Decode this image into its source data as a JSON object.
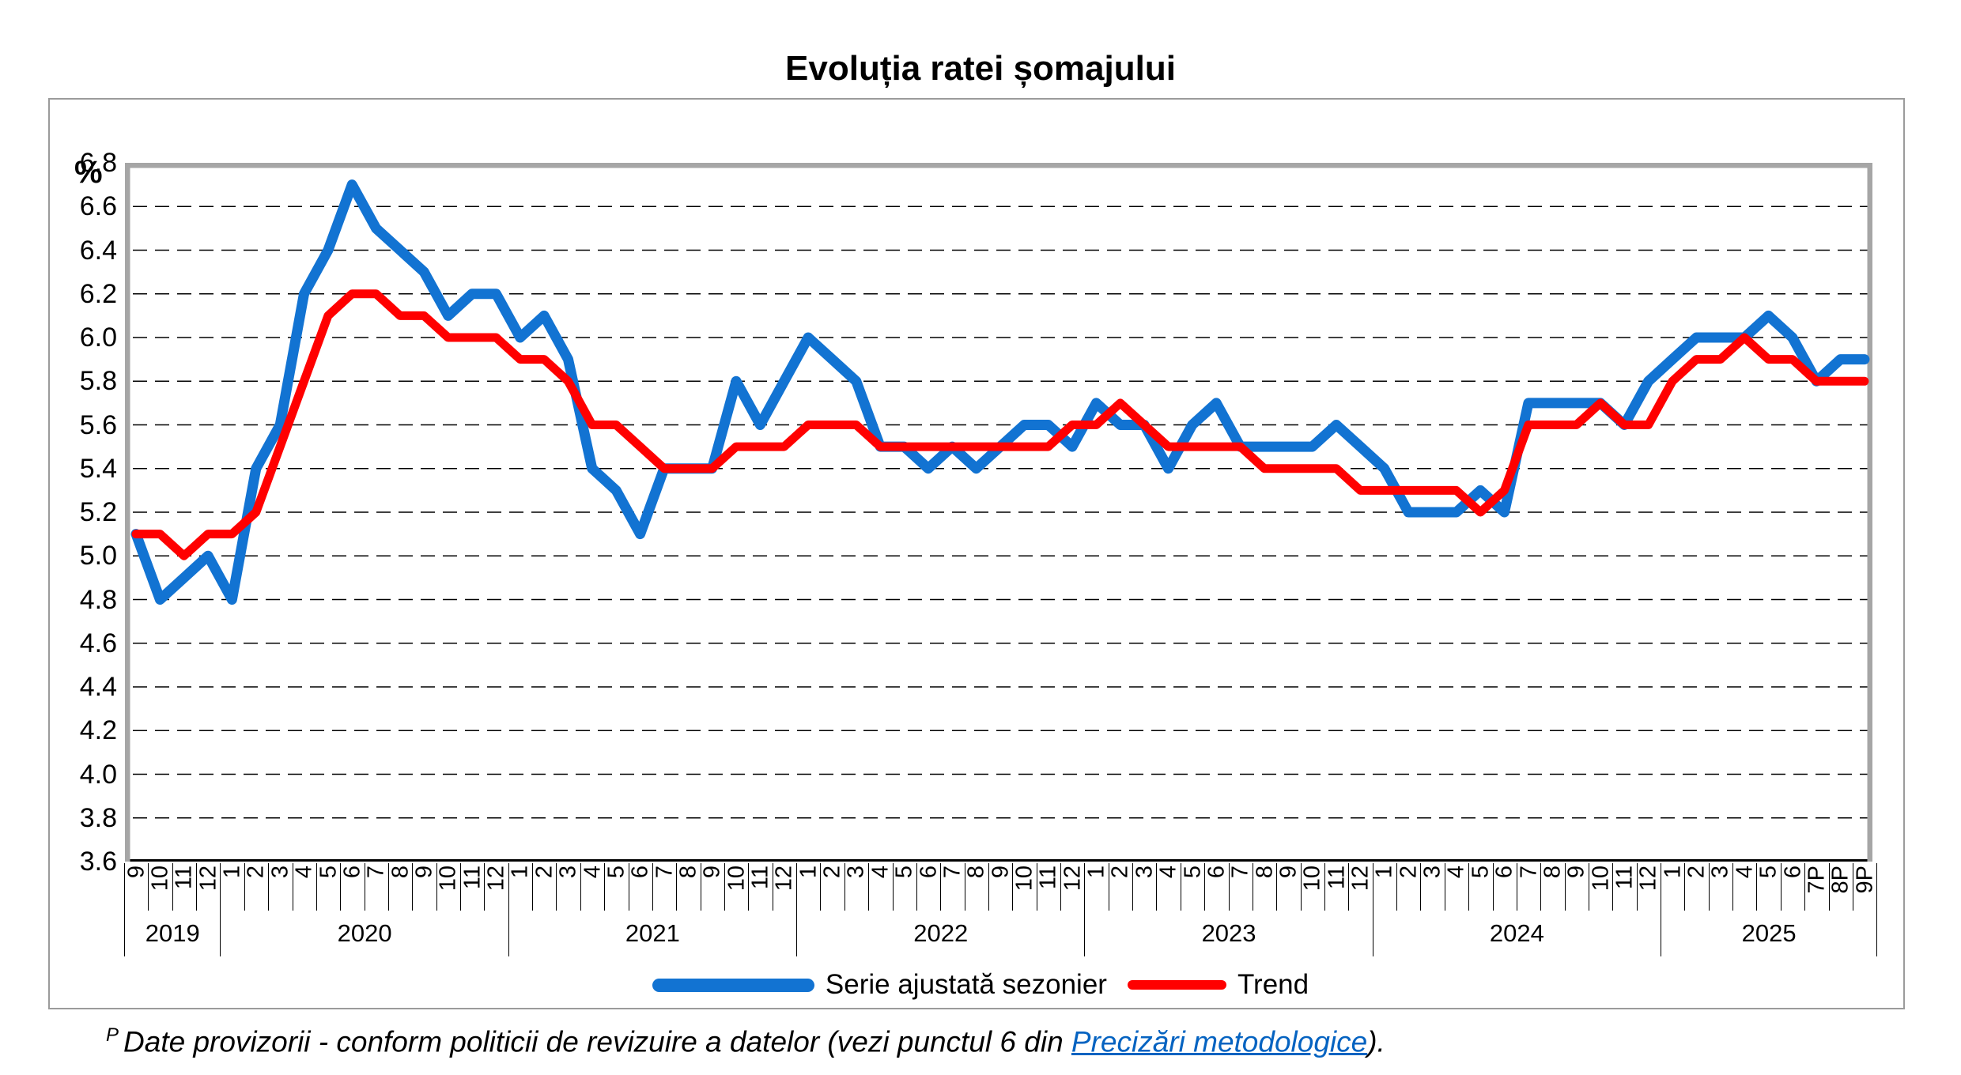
{
  "chart": {
    "y_axis_unit_label": "%"
  },
  "footnote": {
    "marker": "P",
    "text_before_link": "Date provizorii - conform politicii de revizuire a datelor (vezi punctul 6 din ",
    "link_text": "Precizări metodologice",
    "text_after_link": ").",
    "link_color": "#0563C1"
  },
  "chart_data": {
    "type": "line",
    "title": "Evoluția ratei șomajului",
    "ylabel": "%",
    "ylim": [
      3.6,
      6.8
    ],
    "ytick_step": 0.2,
    "grid": true,
    "legend_position": "bottom",
    "x_month_labels": [
      "9",
      "10",
      "11",
      "12",
      "1",
      "2",
      "3",
      "4",
      "5",
      "6",
      "7",
      "8",
      "9",
      "10",
      "11",
      "12",
      "1",
      "2",
      "3",
      "4",
      "5",
      "6",
      "7",
      "8",
      "9",
      "10",
      "11",
      "12",
      "1",
      "2",
      "3",
      "4",
      "5",
      "6",
      "7",
      "8",
      "9",
      "10",
      "11",
      "12",
      "1",
      "2",
      "3",
      "4",
      "5",
      "6",
      "7",
      "8",
      "9",
      "10",
      "11",
      "12",
      "1",
      "2",
      "3",
      "4",
      "5",
      "6",
      "7",
      "8",
      "9",
      "10",
      "11",
      "12",
      "1",
      "2",
      "3",
      "4",
      "5",
      "6",
      "7P",
      "8P",
      "9P"
    ],
    "year_groups": [
      {
        "label": "2019",
        "months": 4
      },
      {
        "label": "2020",
        "months": 12
      },
      {
        "label": "2021",
        "months": 12
      },
      {
        "label": "2022",
        "months": 12
      },
      {
        "label": "2023",
        "months": 12
      },
      {
        "label": "2024",
        "months": 12
      },
      {
        "label": "2025",
        "months": 9
      }
    ],
    "series": [
      {
        "name": "Serie ajustată sezonier",
        "color": "#1273D2",
        "values": [
          5.1,
          4.8,
          4.9,
          5.0,
          4.8,
          5.4,
          5.6,
          6.2,
          6.4,
          6.7,
          6.5,
          6.4,
          6.3,
          6.1,
          6.2,
          6.2,
          6.0,
          6.1,
          5.9,
          5.4,
          5.3,
          5.1,
          5.4,
          5.4,
          5.4,
          5.8,
          5.6,
          5.8,
          6.0,
          5.9,
          5.8,
          5.5,
          5.5,
          5.4,
          5.5,
          5.4,
          5.5,
          5.6,
          5.6,
          5.5,
          5.7,
          5.6,
          5.6,
          5.4,
          5.6,
          5.7,
          5.5,
          5.5,
          5.5,
          5.5,
          5.6,
          5.5,
          5.4,
          5.2,
          5.2,
          5.2,
          5.3,
          5.2,
          5.7,
          5.7,
          5.7,
          5.7,
          5.6,
          5.8,
          5.9,
          6.0,
          6.0,
          6.0,
          6.1,
          6.0,
          5.8,
          5.9,
          5.9
        ]
      },
      {
        "name": "Trend",
        "color": "#FF0000",
        "values": [
          5.1,
          5.1,
          5.0,
          5.1,
          5.1,
          5.2,
          5.5,
          5.8,
          6.1,
          6.2,
          6.2,
          6.1,
          6.1,
          6.0,
          6.0,
          6.0,
          5.9,
          5.9,
          5.8,
          5.6,
          5.6,
          5.5,
          5.4,
          5.4,
          5.4,
          5.5,
          5.5,
          5.5,
          5.6,
          5.6,
          5.6,
          5.5,
          5.5,
          5.5,
          5.5,
          5.5,
          5.5,
          5.5,
          5.5,
          5.6,
          5.6,
          5.7,
          5.6,
          5.5,
          5.5,
          5.5,
          5.5,
          5.4,
          5.4,
          5.4,
          5.4,
          5.3,
          5.3,
          5.3,
          5.3,
          5.3,
          5.2,
          5.3,
          5.6,
          5.6,
          5.6,
          5.7,
          5.6,
          5.6,
          5.8,
          5.9,
          5.9,
          6.0,
          5.9,
          5.9,
          5.8,
          5.8,
          5.8
        ]
      }
    ]
  }
}
